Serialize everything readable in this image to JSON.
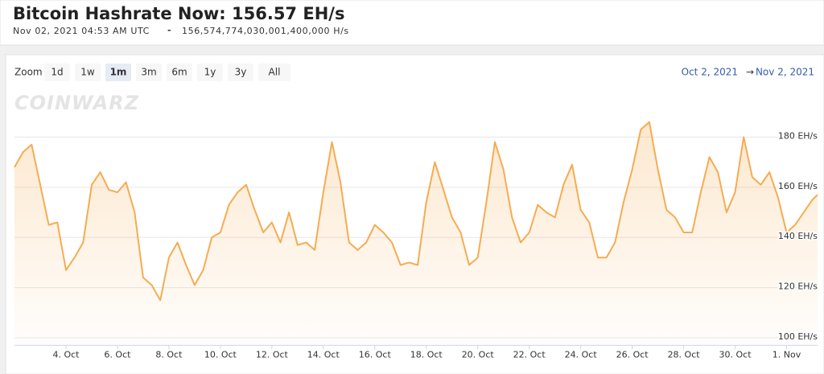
{
  "header": {
    "title": "Bitcoin Hashrate Now: 156.57 EH/s",
    "timestamp": "Nov 02, 2021 04:53 AM UTC",
    "separator": "-",
    "hashrate_full": "156,574,774,030,001,400,000 H/s"
  },
  "zoom": {
    "label": "Zoom",
    "buttons": [
      "1d",
      "1w",
      "1m",
      "3m",
      "6m",
      "1y",
      "3y",
      "All"
    ],
    "selected": "1m"
  },
  "range": {
    "from": "Oct 2, 2021",
    "arrow": "→",
    "to": "Nov 2, 2021"
  },
  "watermark": "COINWARZ",
  "chart_data": {
    "type": "line",
    "color": "#f5ac52",
    "grid": true,
    "x": [
      "2021-10-02T00:00",
      "2021-10-02T08:00",
      "2021-10-02T16:00",
      "2021-10-03T00:00",
      "2021-10-03T08:00",
      "2021-10-03T16:00",
      "2021-10-04T00:00",
      "2021-10-04T08:00",
      "2021-10-04T16:00",
      "2021-10-05T00:00",
      "2021-10-05T08:00",
      "2021-10-05T16:00",
      "2021-10-06T00:00",
      "2021-10-06T08:00",
      "2021-10-06T16:00",
      "2021-10-07T00:00",
      "2021-10-07T08:00",
      "2021-10-07T16:00",
      "2021-10-08T00:00",
      "2021-10-08T08:00",
      "2021-10-08T16:00",
      "2021-10-09T00:00",
      "2021-10-09T08:00",
      "2021-10-09T16:00",
      "2021-10-10T00:00",
      "2021-10-10T08:00",
      "2021-10-10T16:00",
      "2021-10-11T00:00",
      "2021-10-11T08:00",
      "2021-10-11T16:00",
      "2021-10-12T00:00",
      "2021-10-12T08:00",
      "2021-10-12T16:00",
      "2021-10-13T00:00",
      "2021-10-13T08:00",
      "2021-10-13T16:00",
      "2021-10-14T00:00",
      "2021-10-14T08:00",
      "2021-10-14T16:00",
      "2021-10-15T00:00",
      "2021-10-15T08:00",
      "2021-10-15T16:00",
      "2021-10-16T00:00",
      "2021-10-16T08:00",
      "2021-10-16T16:00",
      "2021-10-17T00:00",
      "2021-10-17T08:00",
      "2021-10-17T16:00",
      "2021-10-18T00:00",
      "2021-10-18T08:00",
      "2021-10-18T16:00",
      "2021-10-19T00:00",
      "2021-10-19T08:00",
      "2021-10-19T16:00",
      "2021-10-20T00:00",
      "2021-10-20T08:00",
      "2021-10-20T16:00",
      "2021-10-21T00:00",
      "2021-10-21T08:00",
      "2021-10-21T16:00",
      "2021-10-22T00:00",
      "2021-10-22T08:00",
      "2021-10-22T16:00",
      "2021-10-23T00:00",
      "2021-10-23T08:00",
      "2021-10-23T16:00",
      "2021-10-24T00:00",
      "2021-10-24T08:00",
      "2021-10-24T16:00",
      "2021-10-25T00:00",
      "2021-10-25T08:00",
      "2021-10-25T16:00",
      "2021-10-26T00:00",
      "2021-10-26T08:00",
      "2021-10-26T16:00",
      "2021-10-27T00:00",
      "2021-10-27T08:00",
      "2021-10-27T16:00",
      "2021-10-28T00:00",
      "2021-10-28T08:00",
      "2021-10-28T16:00",
      "2021-10-29T00:00",
      "2021-10-29T08:00",
      "2021-10-29T16:00",
      "2021-10-30T00:00",
      "2021-10-30T08:00",
      "2021-10-30T16:00",
      "2021-10-31T00:00",
      "2021-10-31T08:00",
      "2021-10-31T16:00",
      "2021-11-01T00:00",
      "2021-11-01T08:00",
      "2021-11-01T16:00",
      "2021-11-02T00:00",
      "2021-11-02T04:53"
    ],
    "values": [
      168,
      174,
      177,
      161,
      145,
      146,
      127,
      132,
      138,
      161,
      166,
      159,
      158,
      162,
      150,
      124,
      121,
      115,
      132,
      138,
      129,
      121,
      127,
      140,
      142,
      153,
      158,
      161,
      151,
      142,
      146,
      138,
      150,
      137,
      138,
      135,
      158,
      178,
      162,
      138,
      135,
      138,
      145,
      142,
      138,
      129,
      130,
      129,
      154,
      170,
      159,
      148,
      142,
      129,
      132,
      154,
      178,
      167,
      148,
      138,
      142,
      153,
      150,
      148,
      161,
      169,
      151,
      146,
      132,
      132,
      138,
      154,
      167,
      183,
      186,
      167,
      151,
      148,
      142,
      142,
      158,
      172,
      166,
      150,
      158,
      180,
      164,
      161,
      166,
      156,
      142,
      145,
      150,
      155,
      157
    ],
    "xlim": [
      "2021-10-02T00:00",
      "2021-11-02T04:53"
    ],
    "xticks": [
      {
        "value": "2021-10-04T00:00",
        "label": "4. Oct"
      },
      {
        "value": "2021-10-06T00:00",
        "label": "6. Oct"
      },
      {
        "value": "2021-10-08T00:00",
        "label": "8. Oct"
      },
      {
        "value": "2021-10-10T00:00",
        "label": "10. Oct"
      },
      {
        "value": "2021-10-12T00:00",
        "label": "12. Oct"
      },
      {
        "value": "2021-10-14T00:00",
        "label": "14. Oct"
      },
      {
        "value": "2021-10-16T00:00",
        "label": "16. Oct"
      },
      {
        "value": "2021-10-18T00:00",
        "label": "18. Oct"
      },
      {
        "value": "2021-10-20T00:00",
        "label": "20. Oct"
      },
      {
        "value": "2021-10-22T00:00",
        "label": "22. Oct"
      },
      {
        "value": "2021-10-24T00:00",
        "label": "24. Oct"
      },
      {
        "value": "2021-10-26T00:00",
        "label": "26. Oct"
      },
      {
        "value": "2021-10-28T00:00",
        "label": "28. Oct"
      },
      {
        "value": "2021-10-30T00:00",
        "label": "30. Oct"
      },
      {
        "value": "2021-11-01T00:00",
        "label": "1. Nov"
      }
    ],
    "ylim": [
      97,
      200
    ],
    "yticks": [
      {
        "value": 100,
        "label": "100 EH/s"
      },
      {
        "value": 120,
        "label": "120 EH/s"
      },
      {
        "value": 140,
        "label": "140 EH/s"
      },
      {
        "value": 160,
        "label": "160 EH/s"
      },
      {
        "value": 180,
        "label": "180 EH/s"
      }
    ]
  }
}
